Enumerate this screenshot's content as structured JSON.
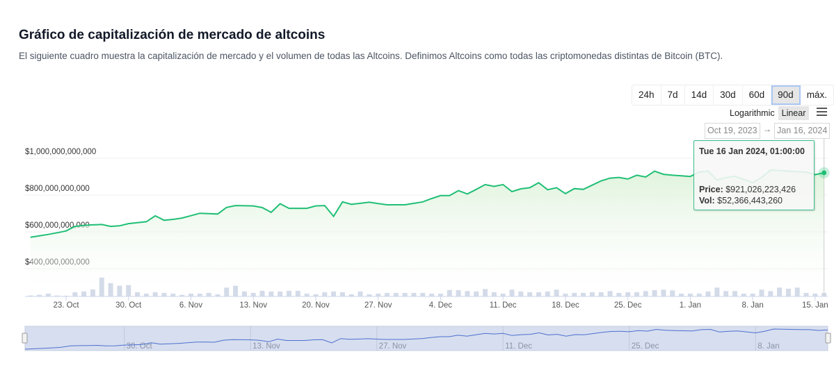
{
  "header": {
    "title": "Gráfico de capitalización de mercado de altcoins",
    "subtitle": "El siguiente cuadro muestra la capitalización de mercado y el volumen de todas las Altcoins. Definimos Altcoins como todas las criptomonedas distintas de Bitcoin (BTC)."
  },
  "controls": {
    "ranges": [
      "24h",
      "7d",
      "14d",
      "30d",
      "60d",
      "90d",
      "máx."
    ],
    "active_range": "90d",
    "scale_log": "Logarithmic",
    "scale_linear": "Linear",
    "active_scale": "Linear",
    "menu_icon": "hamburger-menu-icon",
    "date_from": "Oct 19, 2023",
    "date_arrow": "→",
    "date_to": "Jan 16, 2024"
  },
  "tooltip": {
    "date": "Tue 16 Jan 2024, 01:00:00",
    "price_label": "Price:",
    "price_value": "$921,026,223,426",
    "vol_label": "Vol:",
    "vol_value": "$52,366,443,260"
  },
  "colors": {
    "line": "#1fbf75",
    "fill": "#dff3dc",
    "volume": "#d4dbe8",
    "navigator_fill": "#d7deef",
    "navigator_line": "#4d6fd0",
    "tooltip_border": "#3dbd8b"
  },
  "chart_data": {
    "type": "line",
    "x_start": "2023-10-19",
    "x_end": "2024-01-16",
    "x_interval": "1 day",
    "ylabel": "",
    "ylim": [
      250000000000,
      1000000000000
    ],
    "y_ticks": [
      "$400,000,000,000",
      "$600,000,000,000",
      "$800,000,000,000",
      "$1,000,000,000,000"
    ],
    "y_tick_values": [
      400000000000,
      600000000000,
      800000000000,
      1000000000000
    ],
    "x_ticks": [
      "23. Oct",
      "30. Oct",
      "6. Nov",
      "13. Nov",
      "20. Nov",
      "27. Nov",
      "4. Dec",
      "11. Dec",
      "18. Dec",
      "25. Dec",
      "1. Jan",
      "8. Jan",
      "15. Jan"
    ],
    "x_tick_dates": [
      "2023-10-23",
      "2023-10-30",
      "2023-11-06",
      "2023-11-13",
      "2023-11-20",
      "2023-11-27",
      "2023-12-04",
      "2023-12-11",
      "2023-12-18",
      "2023-12-25",
      "2024-01-01",
      "2024-01-08",
      "2024-01-15"
    ],
    "navigator_ticks": [
      "30. Oct",
      "13. Nov",
      "27. Nov",
      "11. Dec",
      "25. Dec",
      "8. Jan"
    ],
    "navigator_tick_dates": [
      "2023-10-30",
      "2023-11-13",
      "2023-11-27",
      "2023-12-11",
      "2023-12-25",
      "2024-01-08"
    ],
    "grid": true,
    "legend": "none",
    "series": [
      {
        "kind": "market_cap_billions_usd",
        "values": [
          571,
          578,
          586,
          595,
          605,
          630,
          635,
          638,
          640,
          630,
          633,
          645,
          650,
          655,
          687,
          663,
          668,
          675,
          688,
          701,
          699,
          697,
          733,
          743,
          742,
          741,
          732,
          706,
          753,
          728,
          728,
          728,
          741,
          743,
          684,
          763,
          750,
          755,
          761,
          754,
          747,
          747,
          747,
          755,
          763,
          781,
          797,
          797,
          824,
          806,
          831,
          857,
          847,
          857,
          819,
          834,
          840,
          867,
          829,
          840,
          808,
          835,
          831,
          854,
          877,
          892,
          896,
          887,
          908,
          898,
          930,
          913,
          908,
          905,
          901,
          925,
          930,
          882,
          895,
          902,
          885,
          867,
          896,
          936,
          934,
          930,
          927,
          925,
          911,
          921.03
        ]
      },
      {
        "kind": "volume_billions_usd",
        "values": [
          14,
          24,
          42,
          14,
          11,
          63,
          74,
          105,
          284,
          200,
          161,
          171,
          63,
          42,
          63,
          53,
          42,
          24,
          42,
          42,
          53,
          32,
          133,
          161,
          74,
          53,
          84,
          74,
          74,
          84,
          84,
          42,
          32,
          63,
          74,
          63,
          32,
          74,
          32,
          42,
          53,
          53,
          53,
          53,
          53,
          42,
          42,
          98,
          95,
          81,
          74,
          112,
          63,
          42,
          102,
          74,
          63,
          63,
          74,
          102,
          42,
          53,
          53,
          63,
          63,
          81,
          53,
          63,
          63,
          81,
          95,
          102,
          91,
          42,
          42,
          42,
          74,
          133,
          81,
          81,
          42,
          42,
          102,
          81,
          133,
          116,
          133,
          53,
          42,
          52.37
        ]
      }
    ]
  }
}
